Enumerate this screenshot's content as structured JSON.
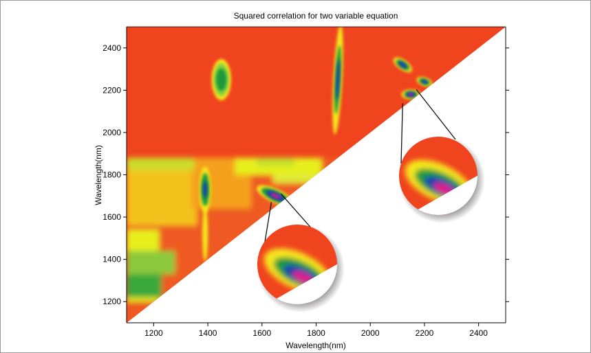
{
  "chart_data": {
    "type": "heatmap",
    "title": "Squared correlation for two variable equation",
    "xlabel": "Wavelength(nm)",
    "ylabel": "Wavelength(nm)",
    "xlim": [
      1100,
      2500
    ],
    "ylim": [
      1100,
      2500
    ],
    "x_ticks": [
      1200,
      1400,
      1600,
      1800,
      2000,
      2200,
      2400
    ],
    "y_ticks": [
      1200,
      1400,
      1600,
      1800,
      2000,
      2200,
      2400
    ],
    "region": "upper-left triangle (y > x)",
    "grid": false,
    "colors": {
      "background": "#f0441f",
      "low": "#f0441f",
      "mid_low": "#ffe600",
      "mid": "#1f9a3a",
      "mid_high": "#1a3fb0",
      "high": "#e01a8c"
    },
    "features": [
      {
        "name": "band-1880",
        "x": [
          1400,
          2450
        ],
        "y": [
          1100,
          1880
        ],
        "color": "#e9d21c"
      },
      {
        "name": "spot-1450-2250",
        "x": 1450,
        "y": 2250,
        "color": "#1f9a3a"
      },
      {
        "name": "ridge-1880-2250",
        "x": 1880,
        "y": 2250,
        "color": "#1a3fb0"
      },
      {
        "name": "spot-1390-1730",
        "x": 1390,
        "y": 1730,
        "color": "#1f9a3a"
      },
      {
        "name": "spot-1650-1700",
        "x": 1650,
        "y": 1700,
        "color": "#1a3fb0"
      },
      {
        "name": "spot-2120-2320",
        "x": 2120,
        "y": 2320,
        "color": "#1a3fb0"
      },
      {
        "name": "spot-2150-2180",
        "x": 2150,
        "y": 2180,
        "color": "#e01a8c"
      },
      {
        "name": "spot-2200-2240",
        "x": 2200,
        "y": 2240,
        "color": "#1a3fb0"
      }
    ],
    "zoom_insets": [
      {
        "name": "zoom-inset-1700",
        "center_x": 1650,
        "center_y": 1690
      },
      {
        "name": "zoom-inset-2150",
        "center_x": 2150,
        "center_y": 2190
      }
    ]
  }
}
